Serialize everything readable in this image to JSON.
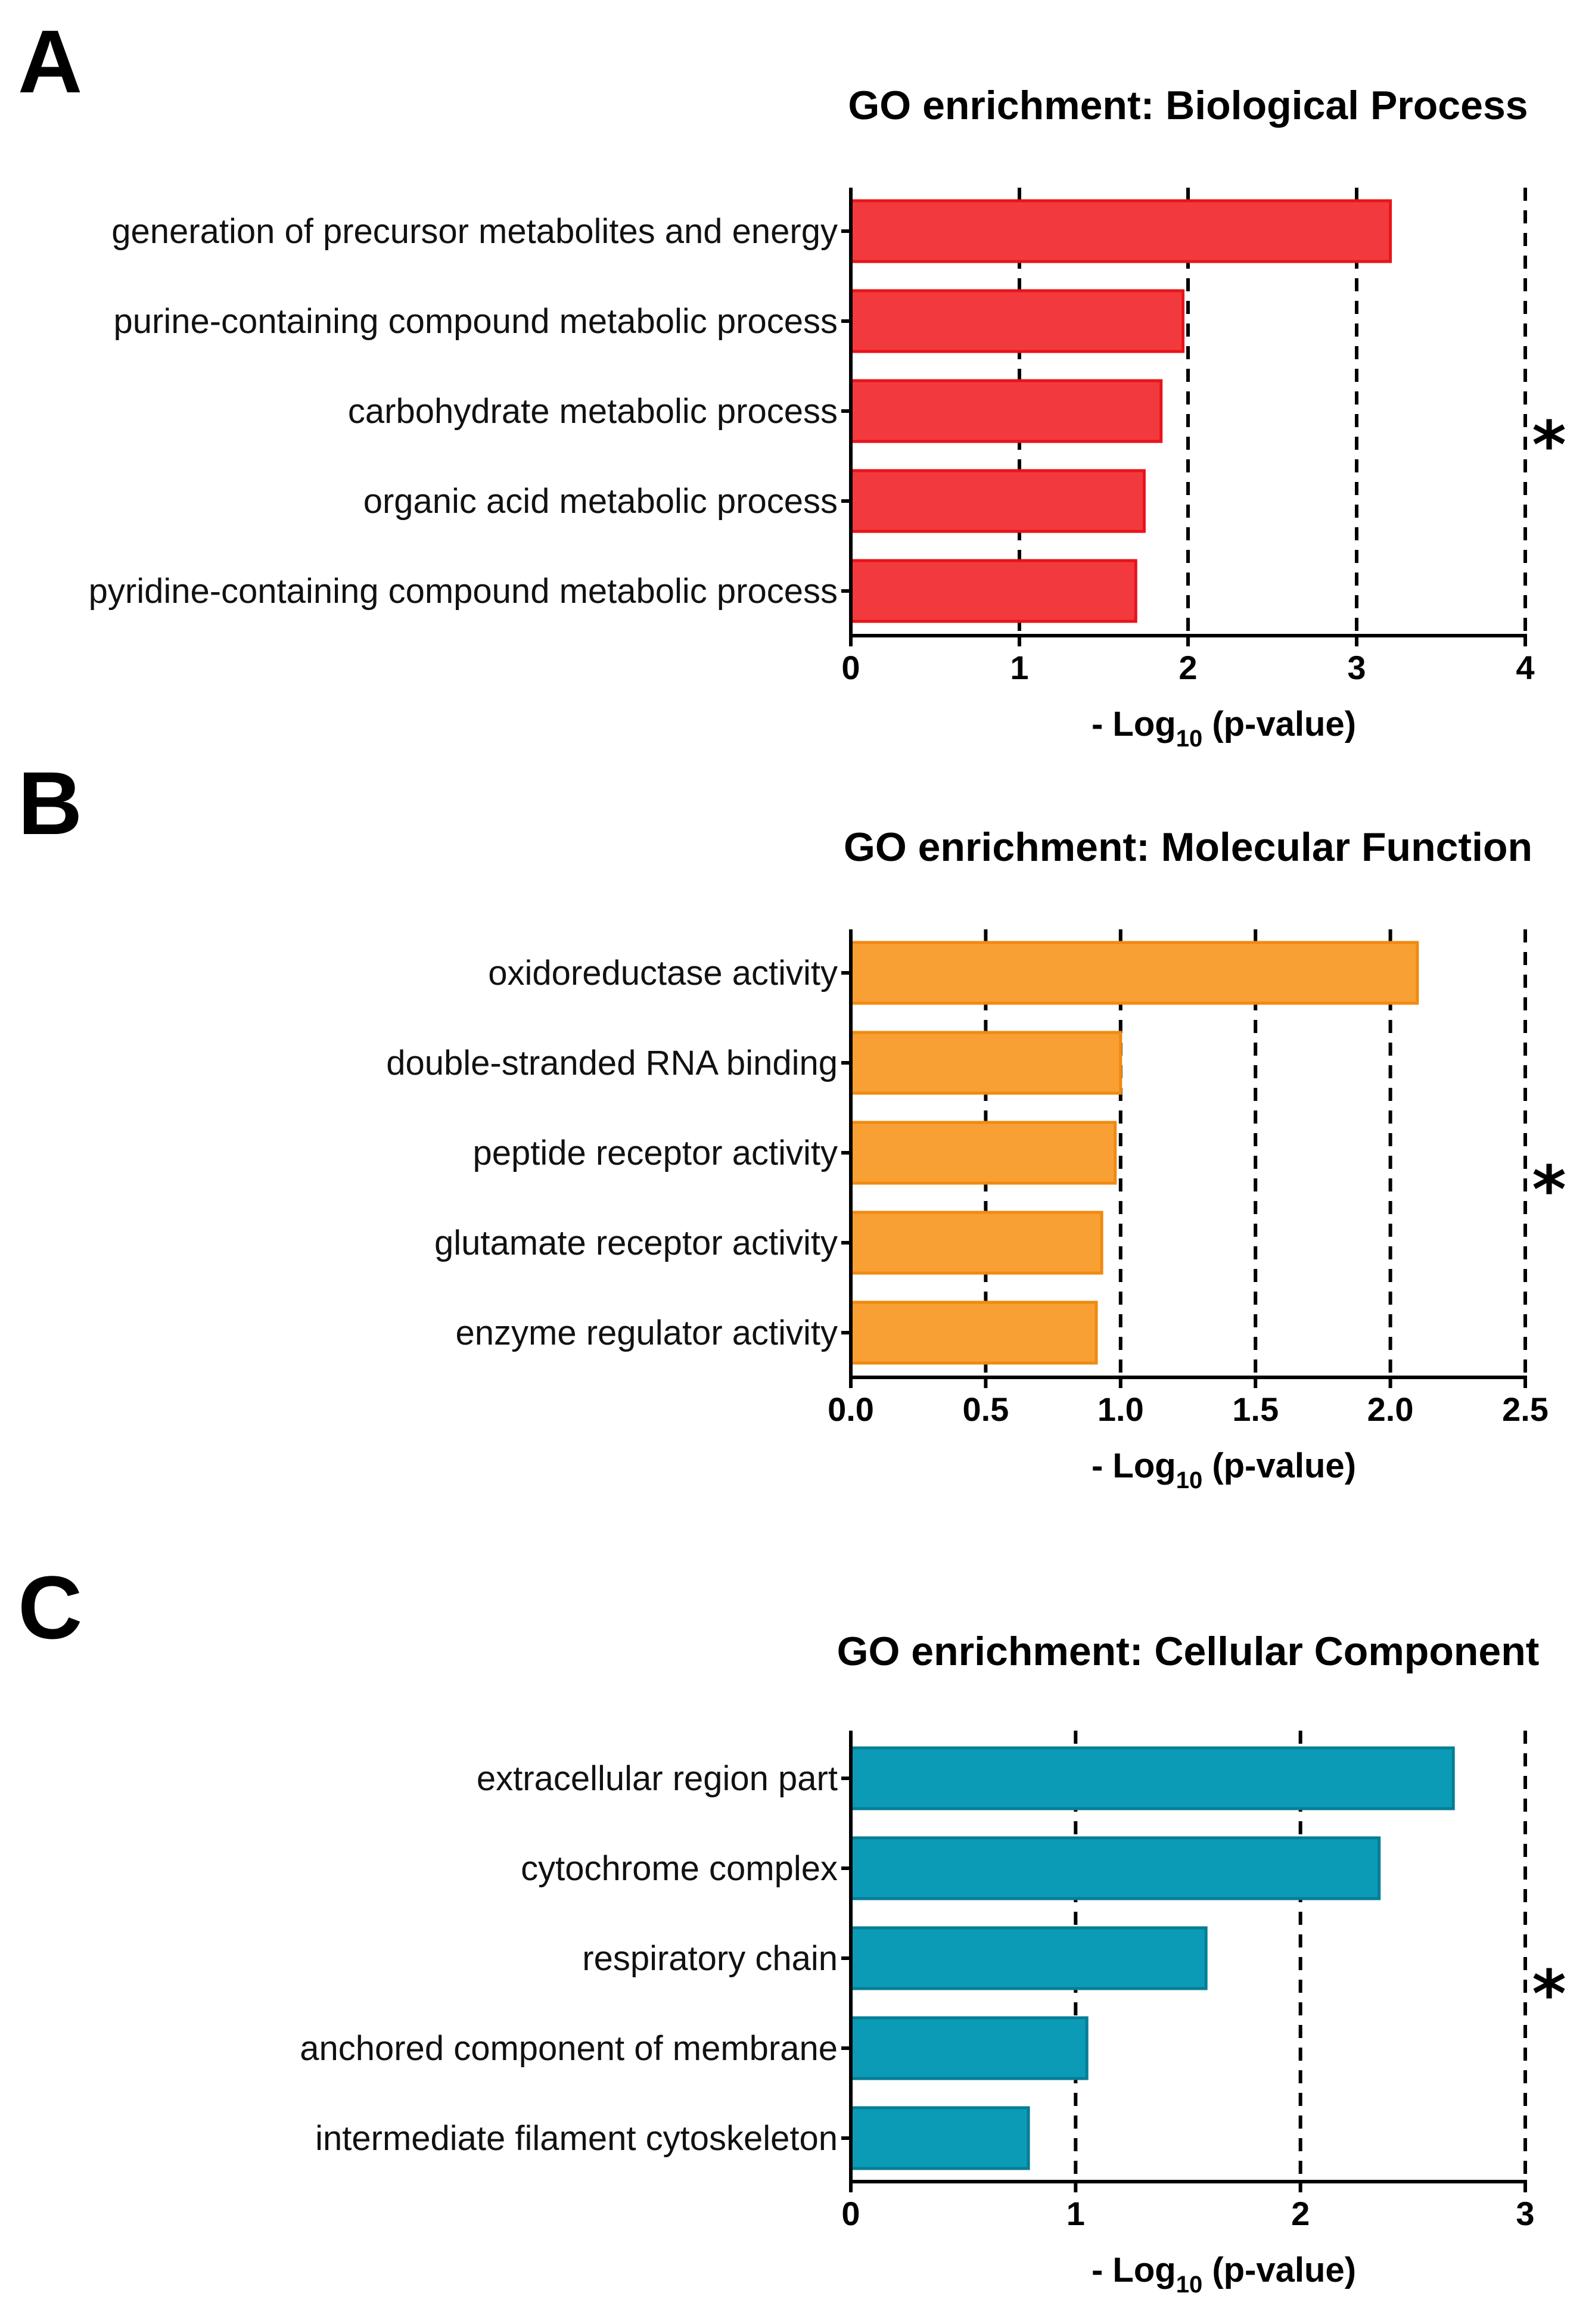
{
  "chart_data": [
    {
      "panel": "A",
      "type": "bar",
      "orientation": "horizontal",
      "title": "GO enrichment: Biological Process",
      "xlabel": "- Log10 (p-value)",
      "xlabel_main": "- Log",
      "xlabel_sub": "10",
      "xlabel_rest": " (p-value)",
      "categories": [
        "generation of precursor metabolites and energy",
        "purine-containing compound metabolic process",
        "carbohydrate metabolic process",
        "organic acid metabolic process",
        "pyridine-containing compound metabolic process"
      ],
      "values": [
        3.2,
        1.97,
        1.84,
        1.74,
        1.69
      ],
      "xlim": [
        0,
        4
      ],
      "xticks": [
        0,
        1,
        2,
        3,
        4
      ],
      "xtick_labels": [
        "0",
        "1",
        "2",
        "3",
        "4"
      ],
      "gridlines": [
        1,
        2,
        3,
        4
      ],
      "annotation": "*",
      "color": "#f23a3e",
      "edge_color": "#e8141a"
    },
    {
      "panel": "B",
      "type": "bar",
      "orientation": "horizontal",
      "title": "GO enrichment: Molecular Function",
      "xlabel": "- Log10 (p-value)",
      "xlabel_main": "- Log",
      "xlabel_sub": "10",
      "xlabel_rest": " (p-value)",
      "categories": [
        "oxidoreductase activity",
        "double-stranded RNA binding",
        "peptide receptor activity",
        "glutamate receptor activity",
        "enzyme regulator activity"
      ],
      "values": [
        2.1,
        1.0,
        0.98,
        0.93,
        0.91
      ],
      "xlim": [
        0,
        2.5
      ],
      "xticks": [
        0.0,
        0.5,
        1.0,
        1.5,
        2.0,
        2.5
      ],
      "xtick_labels": [
        "0.0",
        "0.5",
        "1.0",
        "1.5",
        "2.0",
        "2.5"
      ],
      "gridlines": [
        0.5,
        1.0,
        1.5,
        2.0,
        2.5
      ],
      "annotation": "*",
      "color": "#f9a034",
      "edge_color": "#f08a10"
    },
    {
      "panel": "C",
      "type": "bar",
      "orientation": "horizontal",
      "title": "GO enrichment: Cellular Component",
      "xlabel": "- Log10 (p-value)",
      "xlabel_main": "- Log",
      "xlabel_sub": "10",
      "xlabel_rest": " (p-value)",
      "categories": [
        "extracellular region part",
        "cytochrome complex",
        "respiratory chain",
        "anchored component of membrane",
        "intermediate filament cytoskeleton"
      ],
      "values": [
        2.68,
        2.35,
        1.58,
        1.05,
        0.79
      ],
      "xlim": [
        0,
        3
      ],
      "xticks": [
        0,
        1,
        2,
        3
      ],
      "xtick_labels": [
        "0",
        "1",
        "2",
        "3"
      ],
      "gridlines": [
        1,
        2,
        3
      ],
      "annotation": "*",
      "color": "#0b9bb6",
      "edge_color": "#067e96"
    }
  ]
}
